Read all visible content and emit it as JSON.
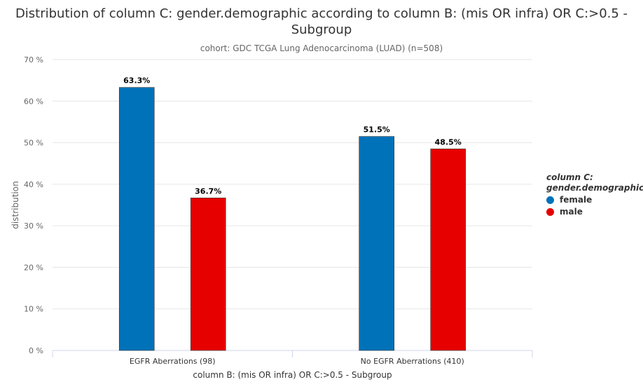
{
  "colors": {
    "female": "#0072b9",
    "male": "#e60000",
    "grid": "#e6e6e6",
    "axis": "#ccd6eb",
    "text": "#333333",
    "muted": "#666666"
  },
  "chart_data": {
    "type": "bar",
    "title": "Distribution of column C: gender.demographic according to column B: (mis OR infra) OR C:>0.5 - Subgroup",
    "subtitle": "cohort: GDC TCGA Lung Adenocarcinoma (LUAD) (n=508)",
    "xlabel": "column B: (mis OR infra) OR C:>0.5 - Subgroup",
    "ylabel": "distribution",
    "ylim": [
      0,
      70
    ],
    "yticks": [
      0,
      10,
      20,
      30,
      40,
      50,
      60,
      70
    ],
    "ytick_labels": [
      "0 %",
      "10 %",
      "20 %",
      "30 %",
      "40 %",
      "50 %",
      "60 %",
      "70 %"
    ],
    "categories": [
      "EGFR Aberrations (98)",
      "No EGFR Aberrations (410)"
    ],
    "series": [
      {
        "name": "female",
        "values": [
          63.3,
          51.5
        ],
        "labels": [
          "63.3%",
          "51.5%"
        ]
      },
      {
        "name": "male",
        "values": [
          36.7,
          48.5
        ],
        "labels": [
          "36.7%",
          "48.5%"
        ]
      }
    ],
    "legend": {
      "title_line1": "column C:",
      "title_line2": "gender.demographic",
      "position": "right"
    },
    "grid": true
  }
}
